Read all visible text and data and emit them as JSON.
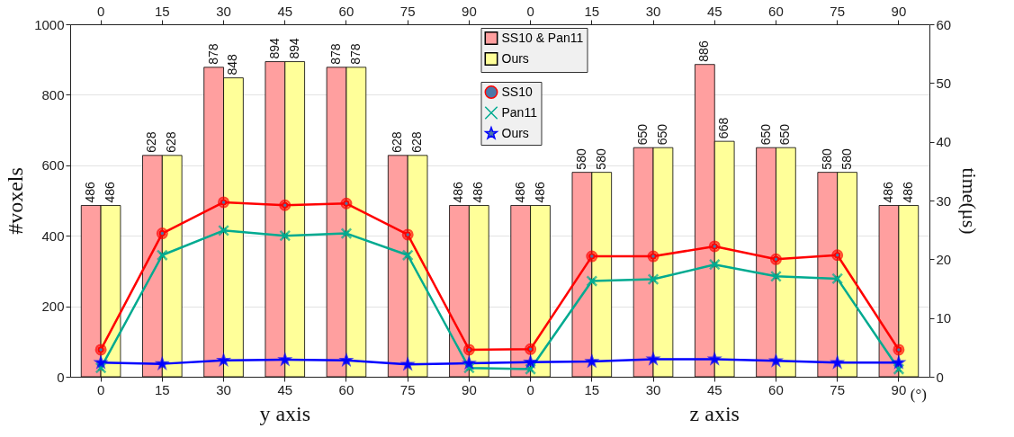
{
  "chart_data": {
    "type": "bar",
    "categories": [
      "0",
      "15",
      "30",
      "45",
      "60",
      "75",
      "90",
      "0",
      "15",
      "30",
      "45",
      "60",
      "75",
      "90"
    ],
    "ylabel": "#voxels",
    "y2label": "time(μs)",
    "ylim": [
      0,
      1000
    ],
    "yticks": [
      0,
      200,
      400,
      600,
      800,
      1000
    ],
    "y2lim": [
      0,
      60
    ],
    "y2ticks": [
      0,
      10,
      20,
      30,
      40,
      50,
      60
    ],
    "grid": "y",
    "legend": "top",
    "annotations": [
      "y axis",
      "z axis",
      "(°)"
    ],
    "series": [
      {
        "name": "SS10 & Pan11",
        "color": "#ff9f9f",
        "values": [
          486,
          628,
          878,
          894,
          878,
          628,
          486,
          486,
          580,
          650,
          886,
          650,
          580,
          486
        ],
        "value_labels": [
          "486",
          "628",
          "878",
          "894",
          "878",
          "628",
          "486",
          "486",
          "580",
          "650",
          "886",
          "650",
          "580",
          "486"
        ]
      },
      {
        "name": "Ours",
        "color": "#ffff99",
        "values": [
          486,
          628,
          848,
          894,
          878,
          628,
          486,
          486,
          580,
          650,
          668,
          650,
          580,
          486
        ],
        "value_labels": [
          "486",
          "628",
          "848",
          "894",
          "878",
          "628",
          "486",
          "486",
          "580",
          "650",
          "668",
          "650",
          "580",
          "486"
        ]
      },
      {
        "name": "SS10",
        "type": "line",
        "axis": "y2",
        "marker": "circle",
        "color": "#ff0000",
        "values": [
          4.6,
          24.4,
          29.7,
          29.2,
          29.5,
          24.2,
          4.6,
          4.7,
          20.5,
          20.5,
          22.2,
          20.0,
          20.7,
          4.6
        ]
      },
      {
        "name": "Pan11",
        "type": "line",
        "axis": "y2",
        "marker": "cross",
        "color": "#00aa90",
        "values": [
          1.5,
          20.7,
          24.9,
          24.0,
          24.4,
          20.7,
          1.5,
          1.3,
          16.3,
          16.6,
          19.1,
          17.1,
          16.7,
          1.3
        ]
      },
      {
        "name": "Ours",
        "type": "line",
        "axis": "y2",
        "marker": "star",
        "color": "#0000ff",
        "values": [
          2.4,
          2.2,
          2.8,
          2.9,
          2.8,
          2.1,
          2.3,
          2.5,
          2.6,
          3.0,
          3.0,
          2.7,
          2.4,
          2.4
        ]
      }
    ]
  }
}
